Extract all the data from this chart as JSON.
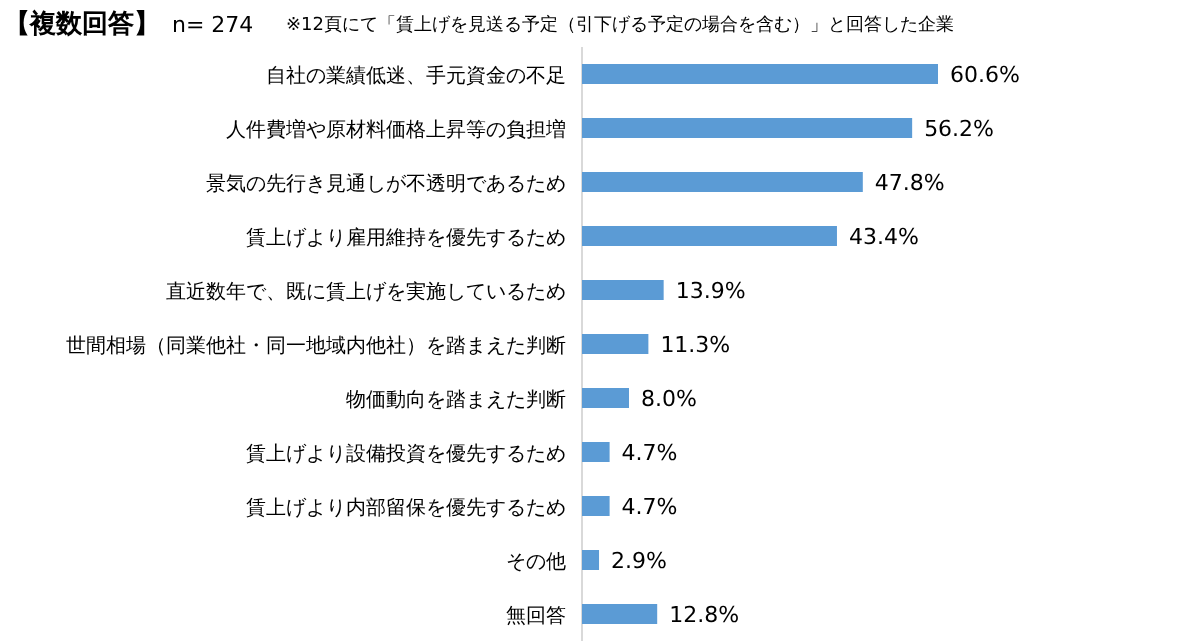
{
  "chart_data": {
    "type": "bar",
    "orientation": "horizontal",
    "title": "【複数回答】",
    "subtitle": "n= 274",
    "annotations": [
      "※12頁にて「賃上げを見送る予定（引下げる予定の場合を含む）」と回答した企業"
    ],
    "categories": [
      "自社の業績低迷、手元資金の不足",
      "人件費増や原材料価格上昇等の負担増",
      "景気の先行き見通しが不透明であるため",
      "賃上げより雇用維持を優先するため",
      "直近数年で、既に賃上げを実施しているため",
      "世間相場（同業他社・同一地域内他社）を踏まえた判断",
      "物価動向を踏まえた判断",
      "賃上げより設備投資を優先するため",
      "賃上げより内部留保を優先するため",
      "その他",
      "無回答"
    ],
    "values": [
      60.6,
      56.2,
      47.8,
      43.4,
      13.9,
      11.3,
      8.0,
      4.7,
      4.7,
      2.9,
      12.8
    ],
    "value_labels": [
      "60.6%",
      "56.2%",
      "47.8%",
      "43.4%",
      "13.9%",
      "11.3%",
      "8.0%",
      "4.7%",
      "4.7%",
      "2.9%",
      "12.8%"
    ],
    "color": "#5b9bd5"
  }
}
